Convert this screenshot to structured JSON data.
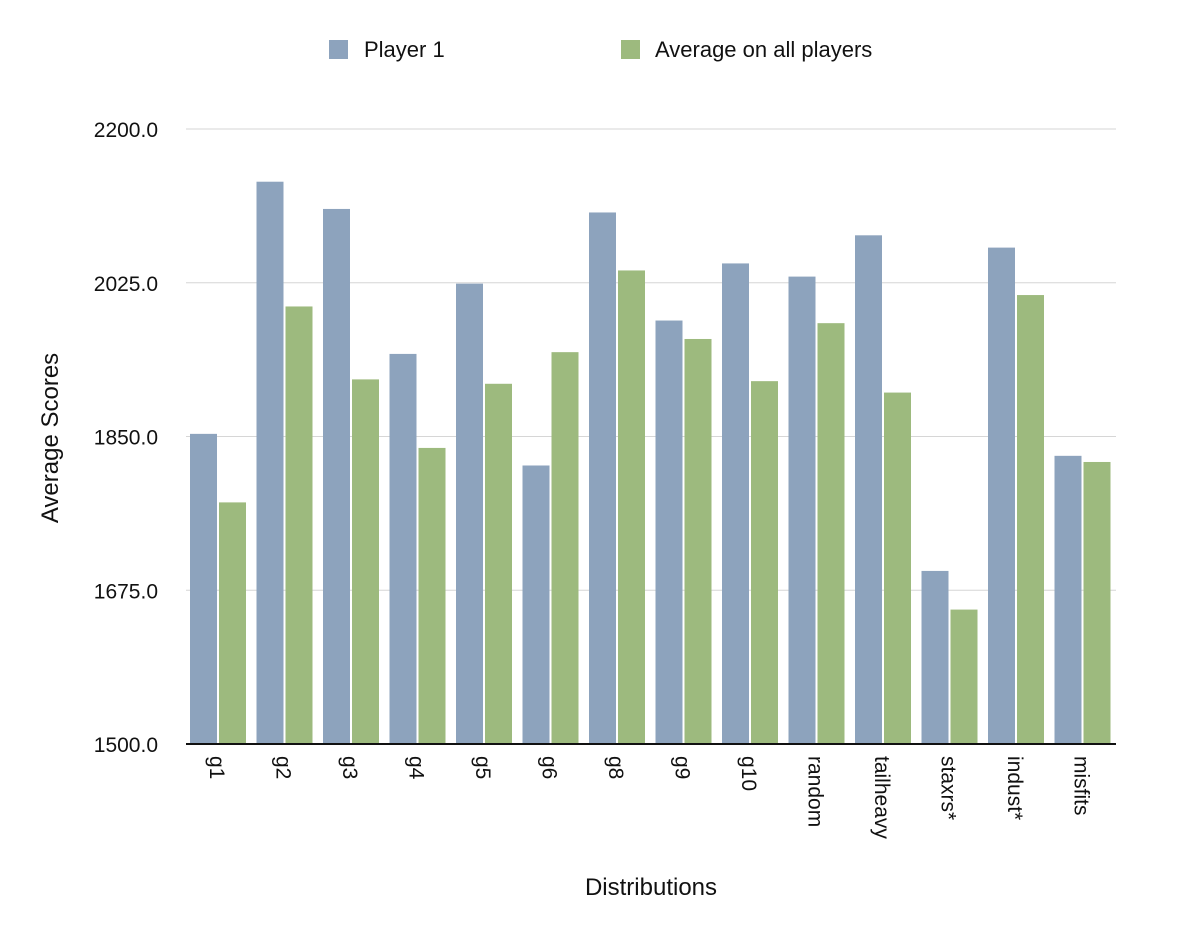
{
  "chart_data": {
    "type": "bar",
    "xlabel": "Distributions",
    "ylabel": "Average Scores",
    "ylim": [
      1500,
      2200
    ],
    "yticks": [
      "1500.0",
      "1675.0",
      "1850.0",
      "2025.0",
      "2200.0"
    ],
    "categories": [
      "g1",
      "g2",
      "g3",
      "g4",
      "g5",
      "g6",
      "g8",
      "g9",
      "g10",
      "random",
      "tailheavy",
      "staxrs*",
      "indust*",
      "misfits"
    ],
    "series": [
      {
        "name": "Player 1",
        "color": "#8da3bd",
        "values": [
          1853,
          2140,
          2109,
          1944,
          2024,
          1817,
          2105,
          1982,
          2047,
          2032,
          2079,
          1697,
          2065,
          1828
        ]
      },
      {
        "name": "Average on all players",
        "color": "#9dba7e",
        "values": [
          1775,
          1998,
          1915,
          1837,
          1910,
          1946,
          2039,
          1961,
          1913,
          1979,
          1900,
          1653,
          2011,
          1821
        ]
      }
    ],
    "grid": true,
    "legend": "top-center"
  }
}
